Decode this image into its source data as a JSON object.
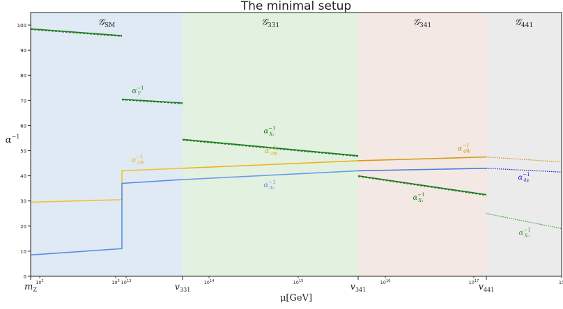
{
  "chart_data": {
    "type": "line",
    "title": "The minimal setup",
    "xlabel": "μ[GeV]",
    "ylabel": "α",
    "ylabel_sup": "−1",
    "ylim": [
      0,
      105
    ],
    "yticks": [
      0,
      10,
      20,
      30,
      40,
      50,
      60,
      70,
      80,
      90,
      100
    ],
    "grid": false,
    "legend": "none",
    "regions": [
      {
        "label": "𝒢",
        "sub": "SM",
        "x_from": "m_Z",
        "x_to": "v_331",
        "color": "#dfeaf5"
      },
      {
        "label": "𝒢",
        "sub": "331",
        "x_from": "v_331",
        "x_to": "v_341",
        "color": "#e3f1e1"
      },
      {
        "label": "𝒢",
        "sub": "341",
        "x_from": "v_341",
        "x_to": "v_441",
        "color": "#f3e8e4"
      },
      {
        "label": "𝒢",
        "sub": "441",
        "x_from": "v_441",
        "x_to": "end",
        "color": "#ebebeb"
      }
    ],
    "x_ticks_major": [
      {
        "label": "m",
        "sub": "Z",
        "pos": "m_Z"
      },
      {
        "label": "v",
        "sub": "331",
        "pos": "v_331"
      },
      {
        "label": "v",
        "sub": "341",
        "pos": "v_341"
      },
      {
        "label": "v",
        "sub": "441",
        "pos": "v_441"
      }
    ],
    "x_ticks_minor": [
      {
        "label": "10",
        "exp": "2",
        "pos": "m_Z+"
      },
      {
        "label": "10",
        "exp": "3",
        "pos": "break_left"
      },
      {
        "label": "10",
        "exp": "13",
        "pos": "break_right"
      },
      {
        "label": "10",
        "exp": "14",
        "pos": "seg2_a"
      },
      {
        "label": "10",
        "exp": "15",
        "pos": "seg2_b"
      },
      {
        "label": "10",
        "exp": "16",
        "pos": "seg3_a"
      },
      {
        "label": "10",
        "exp": "17",
        "pos": "seg3_b"
      },
      {
        "label": "10",
        "exp": "",
        "pos": "end"
      }
    ],
    "series": [
      {
        "name": "α_Y",
        "sub": "Y",
        "color": "#1a7f1a",
        "points": [
          [
            "m_Z",
            98.5
          ],
          [
            "break",
            95.8
          ]
        ]
      },
      {
        "name": "α_Y",
        "sub": "Y",
        "color": "#1a7f1a",
        "points": [
          [
            "break",
            70.5
          ],
          [
            "v_331",
            69.0
          ]
        ]
      },
      {
        "name": "α_X2",
        "sub": "X₂",
        "color": "#1a7f1a",
        "points": [
          [
            "v_331",
            54.5
          ],
          [
            "v_341",
            48.0
          ]
        ]
      },
      {
        "name": "α_X1",
        "sub": "X₁",
        "color": "#1a7f1a",
        "points": [
          [
            "v_341",
            40.0
          ],
          [
            "v_441",
            32.5
          ]
        ]
      },
      {
        "name": "α_X0",
        "sub": "X₀",
        "color": "#3a9a3a",
        "dotted": true,
        "points": [
          [
            "v_441",
            25.0
          ],
          [
            "end",
            19.0
          ]
        ]
      },
      {
        "name": "α_2W",
        "sub": "2W",
        "color": "#f2c12e",
        "points": [
          [
            "m_Z",
            29.5
          ],
          [
            "break",
            30.5
          ],
          [
            "break",
            42.0
          ],
          [
            "v_331",
            43.0
          ]
        ]
      },
      {
        "name": "α_3W",
        "sub": "3W",
        "color": "#f2b01e",
        "points": [
          [
            "v_331",
            43.0
          ],
          [
            "v_341",
            46.0
          ]
        ]
      },
      {
        "name": "α_4W",
        "sub": "4W",
        "color": "#d69b12",
        "points": [
          [
            "v_341",
            46.0
          ],
          [
            "v_441",
            47.5
          ]
        ]
      },
      {
        "name": "α_4W_dotted",
        "sub": "",
        "color": "#c99316",
        "dotted": true,
        "points": [
          [
            "v_441",
            47.5
          ],
          [
            "end",
            45.5
          ]
        ]
      },
      {
        "name": "α_s",
        "sub": "",
        "color": "#5a8fe0",
        "points": [
          [
            "m_Z",
            8.5
          ],
          [
            "break",
            11.0
          ],
          [
            "break",
            37.0
          ],
          [
            "v_331",
            38.5
          ]
        ]
      },
      {
        "name": "α_3c",
        "sub": "3c",
        "color": "#6c9be8",
        "points": [
          [
            "v_331",
            38.5
          ],
          [
            "v_341",
            42.0
          ]
        ]
      },
      {
        "name": "α_341_strong",
        "sub": "",
        "color": "#4a7fd8",
        "points": [
          [
            "v_341",
            42.0
          ],
          [
            "v_441",
            43.0
          ]
        ]
      },
      {
        "name": "α_4s",
        "sub": "4s",
        "color": "#1a1acc",
        "dotted": true,
        "points": [
          [
            "v_441",
            43.0
          ],
          [
            "end",
            41.5
          ]
        ]
      }
    ],
    "annotations": [
      {
        "base": "α",
        "sup": "−1",
        "sub": "Y",
        "series": "α_Y",
        "at": "label_Y",
        "value": 73,
        "color": "#1a7f1a"
      },
      {
        "base": "α",
        "sup": "−1",
        "sub": "X₂",
        "series": "α_X2",
        "at": "label_X2",
        "value": 57,
        "color": "#1a7f1a"
      },
      {
        "base": "α",
        "sup": "−1",
        "sub": "2W",
        "series": "α_2W",
        "at": "label_2W",
        "value": 45.5,
        "color": "#f2b01e"
      },
      {
        "base": "α",
        "sup": "−1",
        "sub": "3W",
        "series": "α_3W",
        "at": "label_3W",
        "value": 49,
        "color": "#e0a818"
      },
      {
        "base": "α",
        "sup": "−1",
        "sub": "3c",
        "series": "α_3c",
        "at": "label_3c",
        "value": 35.5,
        "color": "#5a8fe0"
      },
      {
        "base": "α",
        "sup": "−1",
        "sub": "4W",
        "series": "α_4W",
        "at": "label_4W",
        "value": 50,
        "color": "#c58e10"
      },
      {
        "base": "α",
        "sup": "−1",
        "sub": "4s",
        "series": "α_4s",
        "at": "label_4s",
        "value": 38.5,
        "color": "#1a1acc"
      },
      {
        "base": "α",
        "sup": "−1",
        "sub": "X₁",
        "series": "α_X1",
        "at": "label_X1",
        "value": 30.5,
        "color": "#1a7f1a"
      },
      {
        "base": "α",
        "sup": "−1",
        "sub": "X₀",
        "series": "α_X0",
        "at": "label_X0",
        "value": 16.5,
        "color": "#3a9a3a"
      }
    ]
  }
}
